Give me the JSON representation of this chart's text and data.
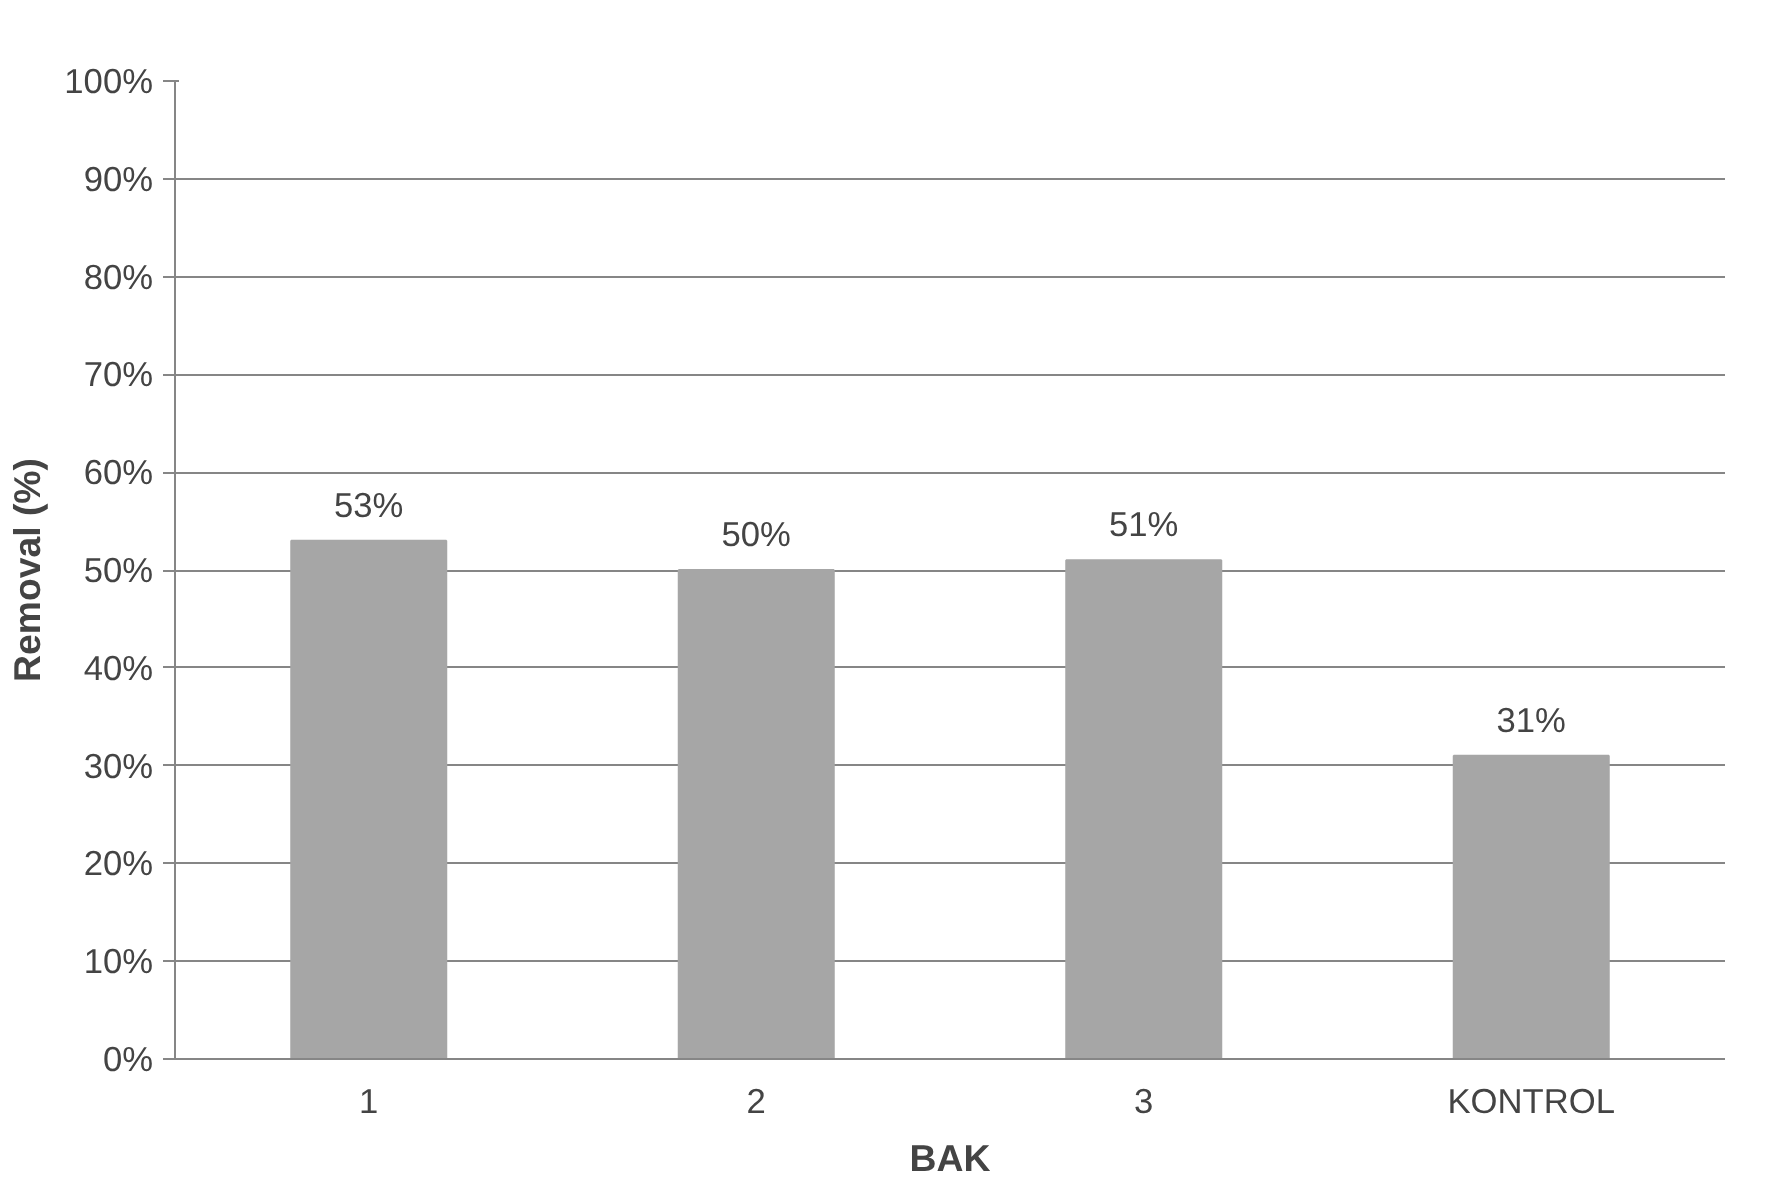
{
  "chart_data": {
    "type": "bar",
    "xlabel": "BAK",
    "ylabel": "Removal (%)",
    "categories": [
      "1",
      "2",
      "3",
      "KONTROL"
    ],
    "values": [
      53,
      50,
      51,
      31
    ],
    "value_labels": [
      "53%",
      "50%",
      "51%",
      "31%"
    ],
    "color": "#a6a6a6",
    "ylim": [
      0,
      100
    ],
    "yticks": [
      {
        "value": 0,
        "label": "0%"
      },
      {
        "value": 10,
        "label": "10%"
      },
      {
        "value": 20,
        "label": "20%"
      },
      {
        "value": 30,
        "label": "30%"
      },
      {
        "value": 40,
        "label": "40%"
      },
      {
        "value": 50,
        "label": "50%"
      },
      {
        "value": 60,
        "label": "60%"
      },
      {
        "value": 70,
        "label": "70%"
      },
      {
        "value": 80,
        "label": "80%"
      },
      {
        "value": 90,
        "label": "90%"
      },
      {
        "value": 100,
        "label": "100%"
      }
    ],
    "grid": "y"
  }
}
